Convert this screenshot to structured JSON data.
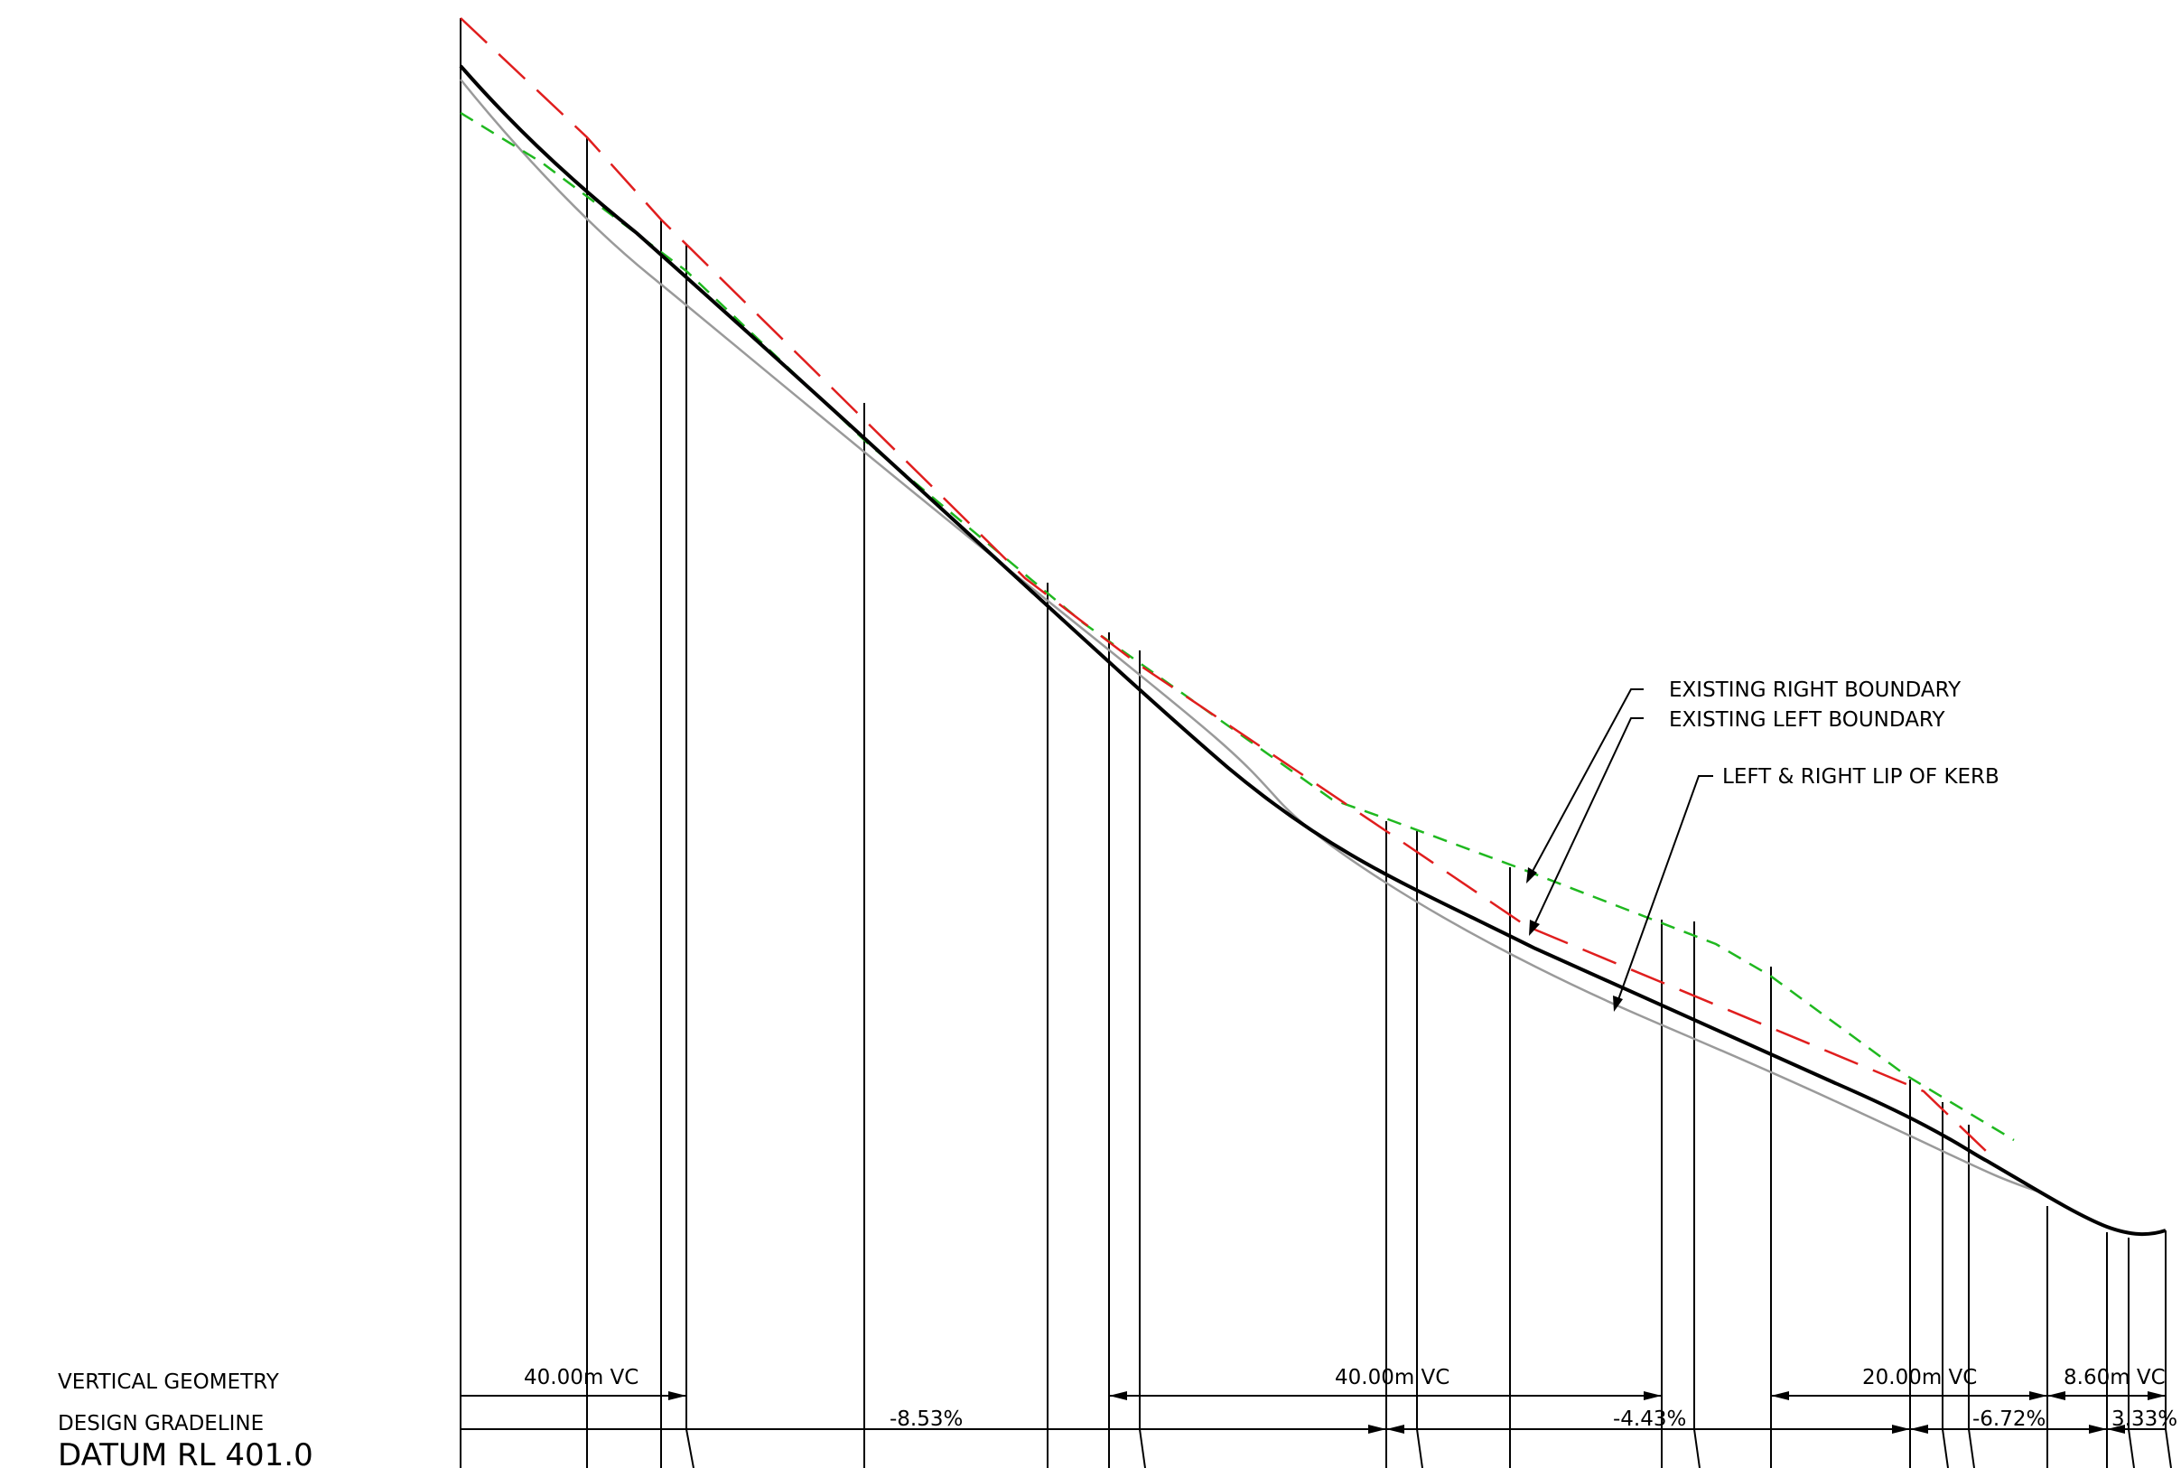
{
  "row_labels": {
    "vertical_geometry": "VERTICAL GEOMETRY",
    "design_gradeline": "DESIGN GRADELINE",
    "datum": "DATUM RL 401.0"
  },
  "annotations": {
    "right_boundary": "EXISTING RIGHT BOUNDARY",
    "left_boundary": "EXISTING LEFT BOUNDARY",
    "lip_of_kerb": "LEFT & RIGHT LIP OF KERB"
  },
  "vertical_curves": [
    "40.00m VC",
    "40.00m VC",
    "20.00m VC",
    "8.60m VC"
  ],
  "grades": [
    "-8.53%",
    "-4.43%",
    "-6.72%",
    "3.33%"
  ],
  "colors": {
    "design_line": "#000000",
    "kerb_line": "#9a9a9a",
    "right_boundary": "#1fb81f",
    "left_boundary": "#e01e1e"
  }
}
